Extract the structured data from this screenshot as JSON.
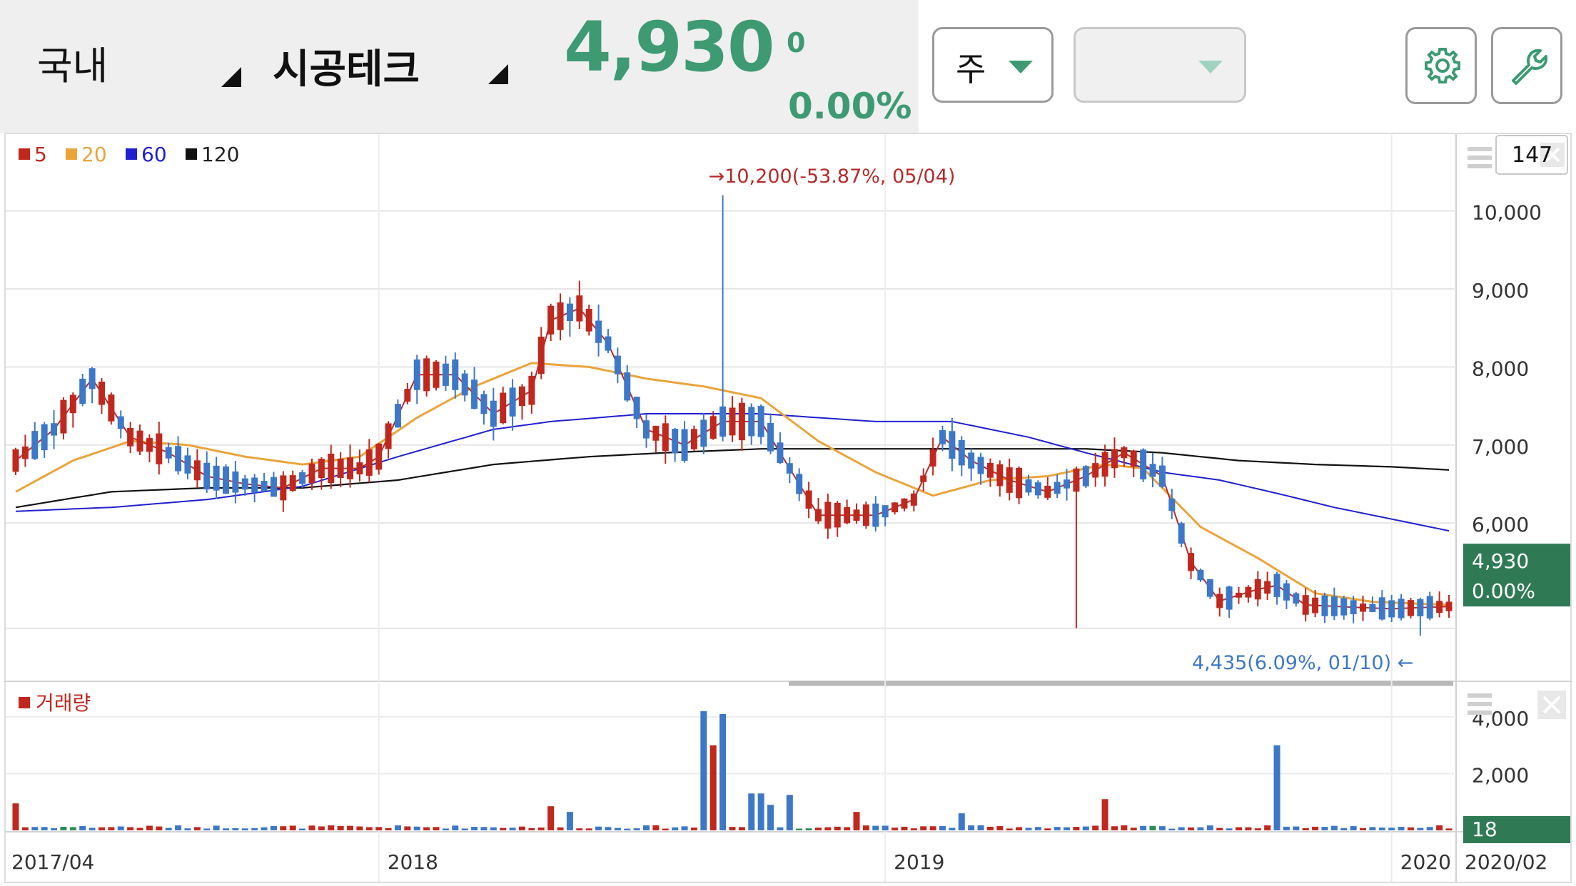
{
  "header": {
    "market": "국내",
    "stock_name": "시공테크",
    "price": "4,930",
    "change": "0",
    "change_pct": "0.00%",
    "period_select": "주",
    "extra_select": "",
    "settings_icon": "gear-icon",
    "tools_icon": "wrench-icon"
  },
  "colors": {
    "up": "#c0281e",
    "down": "#3d78c8",
    "flat": "#2e8b57",
    "ma5": "#b52a2a",
    "ma20": "#eaa43a",
    "ma60": "#2020d0",
    "ma120": "#111111",
    "accent": "#3d9a72",
    "price_tag": "#2f7a55"
  },
  "chart_data": {
    "type": "candlestick",
    "legend": [
      {
        "label": "5",
        "color": "#c0281e"
      },
      {
        "label": "20",
        "color": "#eaa43a"
      },
      {
        "label": "60",
        "color": "#2020d0"
      },
      {
        "label": "120",
        "color": "#111111"
      }
    ],
    "y_ticks": [
      "10,000",
      "9,000",
      "8,000",
      "7,000",
      "6,000"
    ],
    "y_tick_values": [
      10000,
      9000,
      8000,
      7000,
      6000
    ],
    "ylim": [
      4200,
      10600
    ],
    "x_ticks": [
      "2017/04",
      "2018",
      "2019",
      "2020",
      "2020/02"
    ],
    "x_tick_index": [
      0,
      38,
      91,
      144,
      150
    ],
    "gridlines": true,
    "zoom_count": "147",
    "current_price_tag": {
      "price": "4,930",
      "pct": "0.00%",
      "value": 4930
    },
    "max_annotation": {
      "text": "10,200(-53.87%, 05/04)",
      "value": 10200
    },
    "min_annotation": {
      "text": "4,435(6.09%, 01/10)",
      "value": 4435
    },
    "ma": {
      "ma5": [
        [
          0,
          6800
        ],
        [
          4,
          7200
        ],
        [
          8,
          7850
        ],
        [
          12,
          7100
        ],
        [
          16,
          6900
        ],
        [
          20,
          6600
        ],
        [
          24,
          6500
        ],
        [
          28,
          6450
        ],
        [
          32,
          6700
        ],
        [
          36,
          6700
        ],
        [
          38,
          6850
        ],
        [
          42,
          7900
        ],
        [
          46,
          7900
        ],
        [
          50,
          7400
        ],
        [
          54,
          7700
        ],
        [
          56,
          8600
        ],
        [
          59,
          8750
        ],
        [
          62,
          8300
        ],
        [
          66,
          7200
        ],
        [
          70,
          7000
        ],
        [
          74,
          7300
        ],
        [
          78,
          7300
        ],
        [
          81,
          6700
        ],
        [
          84,
          6100
        ],
        [
          87,
          6100
        ],
        [
          90,
          6100
        ],
        [
          94,
          6300
        ],
        [
          97,
          7100
        ],
        [
          100,
          6800
        ],
        [
          104,
          6550
        ],
        [
          108,
          6400
        ],
        [
          112,
          6600
        ],
        [
          116,
          6900
        ],
        [
          120,
          6600
        ],
        [
          123,
          5500
        ],
        [
          126,
          5000
        ],
        [
          130,
          5150
        ],
        [
          132,
          5200
        ],
        [
          135,
          4950
        ],
        [
          140,
          4920
        ],
        [
          144,
          4900
        ],
        [
          150,
          4930
        ]
      ],
      "ma20": [
        [
          0,
          6400
        ],
        [
          6,
          6800
        ],
        [
          12,
          7050
        ],
        [
          18,
          7000
        ],
        [
          24,
          6850
        ],
        [
          30,
          6750
        ],
        [
          36,
          6850
        ],
        [
          42,
          7350
        ],
        [
          48,
          7750
        ],
        [
          54,
          8050
        ],
        [
          60,
          8000
        ],
        [
          66,
          7850
        ],
        [
          72,
          7750
        ],
        [
          78,
          7600
        ],
        [
          84,
          7050
        ],
        [
          90,
          6650
        ],
        [
          96,
          6350
        ],
        [
          102,
          6550
        ],
        [
          108,
          6600
        ],
        [
          114,
          6750
        ],
        [
          118,
          6700
        ],
        [
          124,
          5950
        ],
        [
          130,
          5550
        ],
        [
          136,
          5100
        ],
        [
          142,
          4990
        ],
        [
          150,
          4950
        ]
      ],
      "ma60": [
        [
          0,
          6150
        ],
        [
          10,
          6200
        ],
        [
          20,
          6300
        ],
        [
          30,
          6470
        ],
        [
          40,
          6850
        ],
        [
          50,
          7200
        ],
        [
          56,
          7300
        ],
        [
          66,
          7400
        ],
        [
          78,
          7400
        ],
        [
          90,
          7300
        ],
        [
          98,
          7300
        ],
        [
          106,
          7100
        ],
        [
          112,
          6900
        ],
        [
          120,
          6650
        ],
        [
          126,
          6550
        ],
        [
          132,
          6380
        ],
        [
          138,
          6200
        ],
        [
          144,
          6050
        ],
        [
          150,
          5900
        ]
      ],
      "ma120": [
        [
          0,
          6200
        ],
        [
          10,
          6400
        ],
        [
          20,
          6450
        ],
        [
          30,
          6450
        ],
        [
          40,
          6550
        ],
        [
          50,
          6750
        ],
        [
          60,
          6850
        ],
        [
          68,
          6900
        ],
        [
          78,
          6950
        ],
        [
          90,
          6950
        ],
        [
          100,
          6950
        ],
        [
          112,
          6950
        ],
        [
          120,
          6900
        ],
        [
          128,
          6800
        ],
        [
          136,
          6750
        ],
        [
          144,
          6720
        ],
        [
          150,
          6680
        ]
      ]
    },
    "volume": {
      "label": "거래량",
      "y_ticks": [
        "4,000",
        "2,000"
      ],
      "y_tick_values": [
        4000,
        2000
      ],
      "ylim": [
        0,
        4500
      ],
      "current_tag": "18"
    }
  }
}
